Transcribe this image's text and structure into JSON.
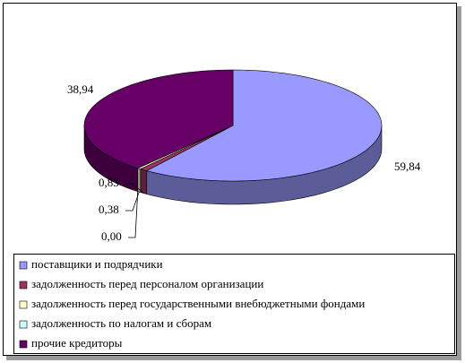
{
  "chart_data": {
    "type": "pie3d",
    "categories": [
      "поставщики и подрядчики",
      "задолженность перед персоналом организации",
      "задолженность перед государственными внебюджетными фондами",
      "задолженность по налогам и сборам",
      "прочие кредиторы"
    ],
    "values": [
      59.84,
      0.83,
      0.38,
      0.0,
      38.94
    ],
    "value_labels": [
      "59,84",
      "0,83",
      "0,38",
      "0,00",
      "38,94"
    ],
    "colors": [
      "#9999ff",
      "#993366",
      "#ffffcc",
      "#ccffff",
      "#660066"
    ],
    "legend": "bottom"
  }
}
